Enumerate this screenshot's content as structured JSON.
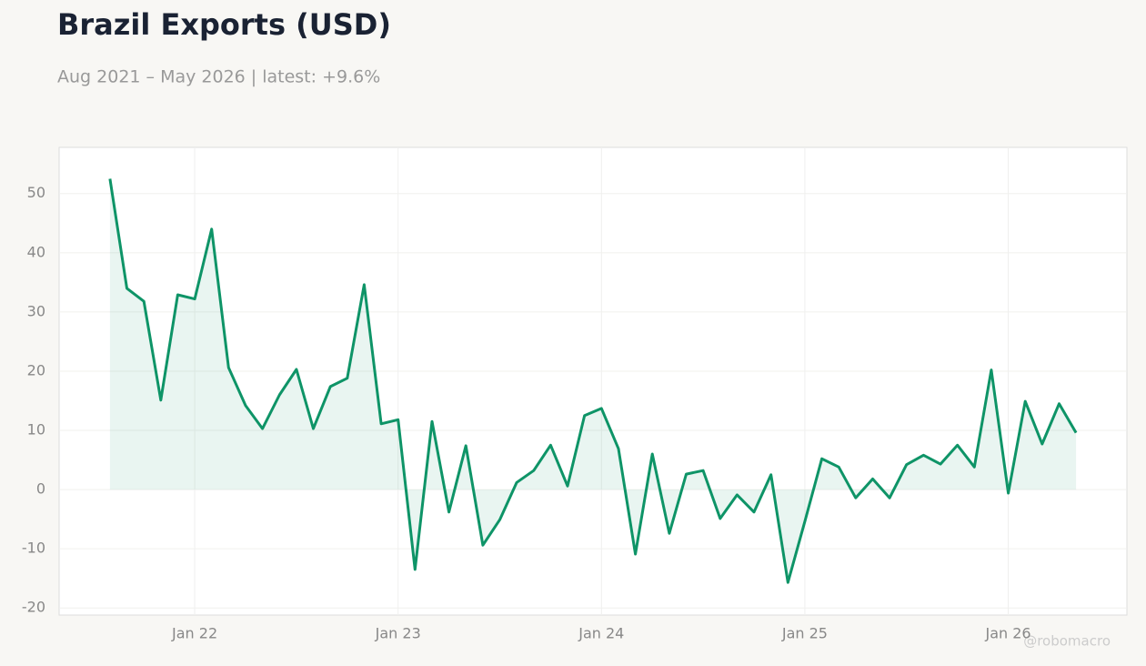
{
  "chart_data": {
    "type": "line",
    "title": "Brazil Exports (USD)",
    "subtitle": "Aug 2021 – May 2026 | latest: +9.6%",
    "watermark": "@robomacro",
    "x": [
      "2021-08",
      "2021-09",
      "2021-10",
      "2021-11",
      "2021-12",
      "2022-01",
      "2022-02",
      "2022-03",
      "2022-04",
      "2022-05",
      "2022-06",
      "2022-07",
      "2022-08",
      "2022-09",
      "2022-10",
      "2022-11",
      "2022-12",
      "2023-01",
      "2023-02",
      "2023-03",
      "2023-04",
      "2023-05",
      "2023-06",
      "2023-07",
      "2023-08",
      "2023-09",
      "2023-10",
      "2023-11",
      "2023-12",
      "2024-01",
      "2024-02",
      "2024-03",
      "2024-04",
      "2024-05",
      "2024-06",
      "2024-07",
      "2024-08",
      "2024-09",
      "2024-10",
      "2024-11",
      "2024-12",
      "2025-01",
      "2025-02",
      "2025-03",
      "2025-04",
      "2025-05",
      "2025-06",
      "2025-07",
      "2025-08",
      "2025-09",
      "2025-10",
      "2025-11",
      "2025-12",
      "2026-01",
      "2026-02",
      "2026-03",
      "2026-04",
      "2026-05"
    ],
    "series": [
      {
        "color": "#0e9467",
        "values": [
          52.5,
          34.0,
          31.8,
          15.1,
          32.9,
          32.2,
          44.0,
          20.6,
          14.2,
          10.3,
          16.0,
          20.3,
          10.3,
          17.4,
          18.8,
          34.6,
          11.1,
          11.8,
          -13.5,
          11.5,
          -3.8,
          7.4,
          -9.4,
          -5.1,
          1.2,
          3.2,
          7.5,
          0.6,
          12.5,
          13.7,
          6.9,
          -10.9,
          6.0,
          -7.4,
          2.6,
          3.2,
          -4.9,
          -0.9,
          -3.8,
          2.5,
          -15.7,
          -5.4,
          5.2,
          3.8,
          -1.4,
          1.8,
          -1.4,
          4.2,
          5.8,
          4.3,
          7.5,
          3.8,
          20.2,
          -0.6,
          14.9,
          7.7,
          14.5,
          9.6
        ]
      }
    ],
    "xlim": [
      "2021-05",
      "2026-08"
    ],
    "xticks": [
      {
        "value": "2022-01",
        "label": "Jan 22"
      },
      {
        "value": "2023-01",
        "label": "Jan 23"
      },
      {
        "value": "2024-01",
        "label": "Jan 24"
      },
      {
        "value": "2025-01",
        "label": "Jan 25"
      },
      {
        "value": "2026-01",
        "label": "Jan 26"
      }
    ],
    "ylim": [
      -21.2,
      57.8
    ],
    "yticks": [
      -20,
      -10,
      0,
      10,
      20,
      30,
      40,
      50
    ],
    "grid": true,
    "area_fill": true
  }
}
